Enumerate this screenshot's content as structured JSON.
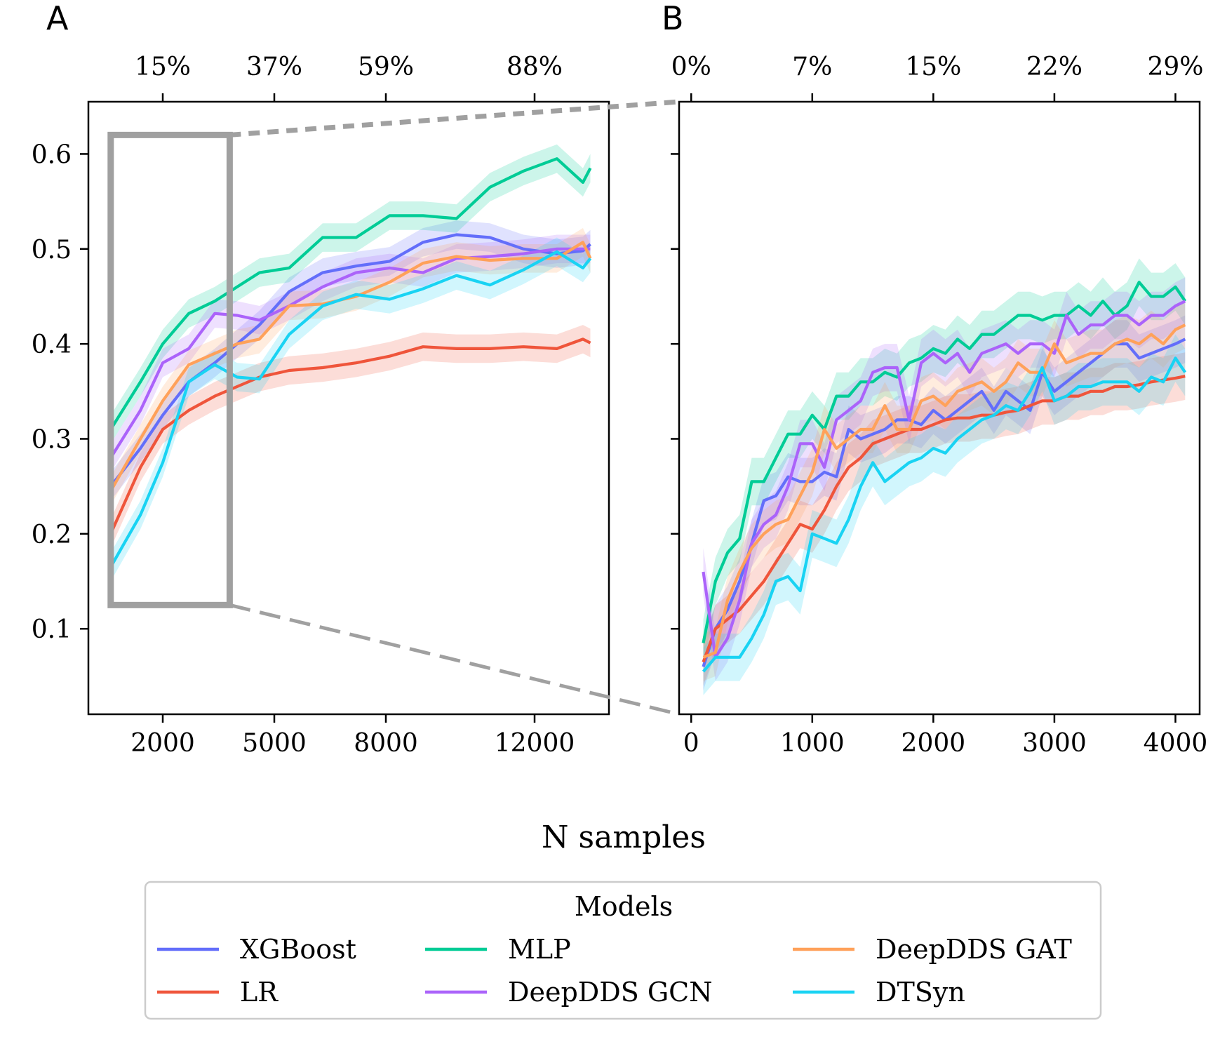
{
  "figure": {
    "xlabel": "N samples",
    "legend_title": "Models"
  },
  "colors": {
    "XGBoost": "#636efa",
    "LR": "#ef553b",
    "MLP": "#00cc96",
    "DeepDDS GCN": "#ab63fa",
    "DeepDDS GAT": "#ffa15a",
    "DTSyn": "#19d3f3",
    "zoom": "#a0a0a0"
  },
  "chart_data": [
    {
      "panel": "A",
      "type": "line",
      "title": "",
      "xlabel": "",
      "ylabel": "",
      "xlim": [
        0,
        14000
      ],
      "ylim": [
        0.01,
        0.655
      ],
      "xticks": [
        2000,
        5000,
        8000,
        12000
      ],
      "xtick_labels": [
        "2000",
        "5000",
        "8000",
        "12000"
      ],
      "yticks": [
        0.1,
        0.2,
        0.3,
        0.4,
        0.5,
        0.6
      ],
      "ytick_labels": [
        "0.1",
        "0.2",
        "0.3",
        "0.4",
        "0.5",
        "0.6"
      ],
      "top_axis": {
        "ticks": [
          2000,
          5000,
          8000,
          12000
        ],
        "labels": [
          "15%",
          "37%",
          "59%",
          "88%"
        ]
      },
      "zoom_box": {
        "x": [
          600,
          3800
        ],
        "y": [
          0.125,
          0.62
        ]
      },
      "grid": false,
      "shaded_band": true,
      "x": [
        600,
        1400,
        2000,
        2700,
        3400,
        4000,
        4600,
        5400,
        6300,
        7200,
        8100,
        9000,
        9900,
        10800,
        11700,
        12600,
        13300,
        13500
      ],
      "series": [
        {
          "name": "XGBoost",
          "values": [
            0.25,
            0.29,
            0.325,
            0.36,
            0.38,
            0.4,
            0.42,
            0.455,
            0.475,
            0.482,
            0.487,
            0.507,
            0.515,
            0.512,
            0.5,
            0.495,
            0.498,
            0.505
          ]
        },
        {
          "name": "LR",
          "values": [
            0.2,
            0.27,
            0.31,
            0.33,
            0.345,
            0.355,
            0.365,
            0.372,
            0.375,
            0.38,
            0.387,
            0.397,
            0.395,
            0.395,
            0.397,
            0.395,
            0.405,
            0.401
          ]
        },
        {
          "name": "MLP",
          "values": [
            0.31,
            0.36,
            0.4,
            0.432,
            0.445,
            0.46,
            0.475,
            0.48,
            0.512,
            0.512,
            0.535,
            0.535,
            0.532,
            0.565,
            0.582,
            0.595,
            0.57,
            0.585
          ]
        },
        {
          "name": "DeepDDS GCN",
          "values": [
            0.28,
            0.33,
            0.38,
            0.395,
            0.432,
            0.43,
            0.425,
            0.44,
            0.46,
            0.475,
            0.48,
            0.475,
            0.49,
            0.492,
            0.495,
            0.5,
            0.5,
            0.5
          ]
        },
        {
          "name": "DeepDDS GAT",
          "values": [
            0.245,
            0.3,
            0.34,
            0.378,
            0.39,
            0.4,
            0.405,
            0.44,
            0.442,
            0.45,
            0.465,
            0.485,
            0.492,
            0.488,
            0.49,
            0.49,
            0.507,
            0.49
          ]
        },
        {
          "name": "DTSyn",
          "values": [
            0.165,
            0.22,
            0.275,
            0.36,
            0.378,
            0.365,
            0.363,
            0.41,
            0.44,
            0.452,
            0.447,
            0.458,
            0.472,
            0.462,
            0.478,
            0.497,
            0.48,
            0.49
          ]
        }
      ]
    },
    {
      "panel": "B",
      "type": "line",
      "title": "",
      "xlabel": "",
      "ylabel": "",
      "xlim": [
        -100,
        4200
      ],
      "ylim": [
        0.01,
        0.655
      ],
      "xticks": [
        0,
        1000,
        2000,
        3000,
        4000
      ],
      "xtick_labels": [
        "0",
        "1000",
        "2000",
        "3000",
        "4000"
      ],
      "yticks": [
        0.1,
        0.2,
        0.3,
        0.4,
        0.5,
        0.6
      ],
      "top_axis": {
        "ticks": [
          0,
          1000,
          2000,
          3000,
          4000
        ],
        "labels": [
          "0%",
          "7%",
          "15%",
          "22%",
          "29%"
        ]
      },
      "grid": false,
      "shaded_band": true,
      "x": [
        100,
        200,
        300,
        400,
        500,
        600,
        700,
        800,
        900,
        1000,
        1100,
        1200,
        1300,
        1400,
        1500,
        1600,
        1700,
        1800,
        1900,
        2000,
        2100,
        2200,
        2300,
        2400,
        2500,
        2600,
        2700,
        2800,
        2900,
        3000,
        3100,
        3200,
        3300,
        3400,
        3500,
        3600,
        3700,
        3800,
        3900,
        4000,
        4080
      ],
      "series": [
        {
          "name": "XGBoost",
          "values": [
            0.06,
            0.1,
            0.12,
            0.15,
            0.19,
            0.235,
            0.24,
            0.26,
            0.255,
            0.255,
            0.265,
            0.26,
            0.31,
            0.3,
            0.305,
            0.31,
            0.32,
            0.32,
            0.315,
            0.33,
            0.32,
            0.33,
            0.34,
            0.35,
            0.33,
            0.35,
            0.34,
            0.33,
            0.37,
            0.35,
            0.36,
            0.37,
            0.38,
            0.39,
            0.4,
            0.4,
            0.385,
            0.39,
            0.395,
            0.4,
            0.405
          ]
        },
        {
          "name": "LR",
          "values": [
            0.065,
            0.1,
            0.11,
            0.12,
            0.135,
            0.15,
            0.17,
            0.19,
            0.21,
            0.205,
            0.225,
            0.25,
            0.27,
            0.28,
            0.295,
            0.3,
            0.305,
            0.31,
            0.31,
            0.315,
            0.32,
            0.322,
            0.322,
            0.325,
            0.325,
            0.328,
            0.33,
            0.335,
            0.34,
            0.34,
            0.345,
            0.345,
            0.35,
            0.35,
            0.355,
            0.355,
            0.357,
            0.36,
            0.362,
            0.364,
            0.366
          ]
        },
        {
          "name": "MLP",
          "values": [
            0.085,
            0.15,
            0.18,
            0.195,
            0.255,
            0.255,
            0.28,
            0.305,
            0.305,
            0.325,
            0.31,
            0.345,
            0.345,
            0.36,
            0.36,
            0.37,
            0.365,
            0.38,
            0.385,
            0.395,
            0.39,
            0.405,
            0.395,
            0.41,
            0.41,
            0.42,
            0.43,
            0.43,
            0.425,
            0.43,
            0.43,
            0.44,
            0.43,
            0.445,
            0.43,
            0.44,
            0.465,
            0.45,
            0.45,
            0.46,
            0.445
          ]
        },
        {
          "name": "DeepDDS GCN",
          "values": [
            0.16,
            0.07,
            0.09,
            0.13,
            0.19,
            0.21,
            0.22,
            0.25,
            0.295,
            0.295,
            0.27,
            0.32,
            0.33,
            0.34,
            0.37,
            0.375,
            0.375,
            0.32,
            0.38,
            0.39,
            0.38,
            0.39,
            0.37,
            0.39,
            0.395,
            0.4,
            0.39,
            0.4,
            0.4,
            0.39,
            0.43,
            0.41,
            0.42,
            0.42,
            0.43,
            0.43,
            0.42,
            0.43,
            0.43,
            0.44,
            0.445
          ]
        },
        {
          "name": "DeepDDS GAT",
          "values": [
            0.07,
            0.075,
            0.13,
            0.16,
            0.185,
            0.2,
            0.21,
            0.215,
            0.24,
            0.265,
            0.31,
            0.29,
            0.3,
            0.31,
            0.31,
            0.335,
            0.31,
            0.31,
            0.34,
            0.345,
            0.335,
            0.35,
            0.355,
            0.36,
            0.35,
            0.36,
            0.38,
            0.37,
            0.37,
            0.4,
            0.38,
            0.385,
            0.39,
            0.39,
            0.4,
            0.405,
            0.4,
            0.41,
            0.4,
            0.415,
            0.42
          ]
        },
        {
          "name": "DTSyn",
          "values": [
            0.055,
            0.07,
            0.07,
            0.07,
            0.09,
            0.115,
            0.15,
            0.155,
            0.14,
            0.2,
            0.195,
            0.19,
            0.215,
            0.25,
            0.275,
            0.255,
            0.265,
            0.275,
            0.28,
            0.29,
            0.285,
            0.3,
            0.31,
            0.32,
            0.325,
            0.335,
            0.33,
            0.35,
            0.375,
            0.34,
            0.345,
            0.355,
            0.355,
            0.36,
            0.36,
            0.36,
            0.35,
            0.365,
            0.36,
            0.385,
            0.37
          ]
        }
      ]
    }
  ],
  "legend": {
    "items": [
      "XGBoost",
      "LR",
      "MLP",
      "DeepDDS GCN",
      "DeepDDS GAT",
      "DTSyn"
    ]
  }
}
